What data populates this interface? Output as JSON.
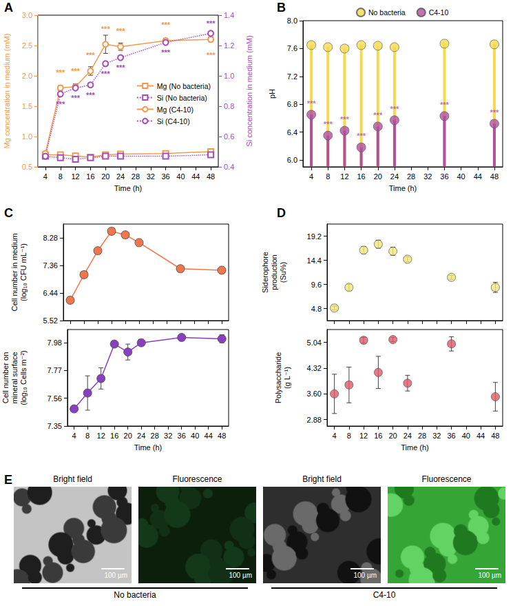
{
  "chart_data": [
    {
      "panel_label": "A",
      "type": "line",
      "x_label": "Time (h)",
      "y_label": "Mg concentration in medium (mM)",
      "y2_label": "Si concentration in medium (mM)",
      "x": [
        4,
        8,
        12,
        16,
        20,
        24,
        36,
        48
      ],
      "xlim": [
        2,
        50
      ],
      "xticks": [
        4,
        8,
        12,
        16,
        20,
        24,
        28,
        32,
        36,
        40,
        44,
        48
      ],
      "ylim": [
        0.5,
        3.0
      ],
      "yticks": [
        0.5,
        {
          "value": 1,
          "label": "1.0"
        },
        1.5,
        {
          "value": 2,
          "label": "2.0"
        },
        2.5,
        {
          "value": 3,
          "label": "3.0"
        }
      ],
      "y2lim": [
        0.4,
        1.4
      ],
      "y2ticks": [
        0.4,
        0.6,
        0.8,
        {
          "value": 1,
          "label": "1.0"
        },
        1.2,
        1.4
      ],
      "grid": false,
      "legend": "right",
      "series": [
        {
          "name": "Mg (No bacteria)",
          "color": "#f39a4b",
          "marker": "open square",
          "line_style": "solid",
          "values": [
            0.7,
            0.7,
            0.68,
            0.66,
            0.7,
            0.71,
            0.72,
            0.75
          ]
        },
        {
          "name": "Si (No bacteria)",
          "color": "#a64db8",
          "marker": "open square",
          "line_style": "dotted",
          "axis": "y2",
          "values": [
            0.47,
            0.46,
            0.45,
            0.46,
            0.47,
            0.47,
            0.47,
            0.48
          ]
        },
        {
          "name": "Mg (C4-10)",
          "color": "#f39a4b",
          "marker": "open circle",
          "line_style": "solid",
          "values": [
            0.72,
            1.8,
            1.82,
            2.08,
            2.52,
            2.48,
            2.58,
            2.6
          ],
          "errors": [
            0.02,
            0.04,
            0.05,
            0.07,
            0.15,
            0.06,
            0.04,
            0.04
          ],
          "significance": [
            null,
            "***",
            "***",
            "***",
            "***",
            "***",
            "***",
            "***"
          ]
        },
        {
          "name": "Si (C4-10)",
          "color": "#a64db8",
          "marker": "open circle",
          "line_style": "dotted",
          "axis": "y2",
          "values": [
            0.47,
            0.88,
            0.92,
            0.94,
            1.08,
            1.12,
            1.22,
            1.28
          ],
          "significance": [
            null,
            "***",
            "***",
            "***",
            "***",
            "***",
            "***",
            "***"
          ]
        }
      ]
    },
    {
      "panel_label": "B",
      "type": "lollipop",
      "x_label": "Time (h)",
      "y_label": "pH",
      "x": [
        4,
        8,
        12,
        16,
        20,
        24,
        36,
        48
      ],
      "xlim": [
        2,
        50
      ],
      "xticks": [
        4,
        8,
        12,
        16,
        20,
        24,
        28,
        32,
        36,
        40,
        44,
        48
      ],
      "ylim": [
        5.9,
        8.0
      ],
      "yticks": [
        {
          "value": 6,
          "label": "6.0"
        },
        6.4,
        6.8,
        7.2,
        7.6,
        {
          "value": 8,
          "label": "8.0"
        }
      ],
      "grid": false,
      "legend": "top",
      "series": [
        {
          "name": "No bacteria",
          "color": "#f5d94e",
          "values": [
            7.65,
            7.62,
            7.6,
            7.65,
            7.64,
            7.62,
            7.67,
            7.66
          ]
        },
        {
          "name": "C4-10",
          "color": "#b0509f",
          "values": [
            6.65,
            6.35,
            6.42,
            6.18,
            6.48,
            6.57,
            6.63,
            6.52
          ],
          "significance": [
            "***",
            "***",
            "***",
            "***",
            "***",
            "***",
            "***",
            "***"
          ]
        }
      ]
    },
    {
      "panel_label": "C",
      "type": "line",
      "y_label": "Cell number in medium (log₁₀ CFU mL⁻¹)",
      "x": [
        4,
        8,
        12,
        16,
        20,
        24,
        36,
        48
      ],
      "xlim": [
        2,
        50
      ],
      "xticks": [
        4,
        8,
        12,
        16,
        20,
        24,
        28,
        32,
        36,
        40,
        44,
        48
      ],
      "ylim": [
        5.52,
        8.74
      ],
      "yticks": [
        5.52,
        6.44,
        7.36,
        8.28
      ],
      "tick_labels": "y",
      "grid": false,
      "series": [
        {
          "color": "#f0764c",
          "marker": "circle",
          "line_style": "solid",
          "values": [
            6.2,
            7.05,
            7.85,
            8.5,
            8.38,
            8.12,
            7.25,
            7.2
          ],
          "errors": [
            0.08,
            0.07,
            0.04,
            0.05,
            0.06,
            0.07,
            0.08,
            0.06
          ]
        }
      ]
    },
    {
      "type": "line",
      "x_label": "Time (h)",
      "y_label": "Cell number on mineral surface (log₁₀ Cells m⁻²)",
      "x": [
        4,
        8,
        12,
        16,
        20,
        24,
        36,
        48
      ],
      "xlim": [
        2,
        50
      ],
      "xticks": [
        4,
        8,
        12,
        16,
        20,
        24,
        28,
        32,
        36,
        40,
        44,
        48
      ],
      "ylim": [
        7.35,
        8.08
      ],
      "yticks": [
        7.35,
        7.56,
        7.77,
        7.98
      ],
      "grid": false,
      "series": [
        {
          "color": "#8a3fc0",
          "marker": "circle",
          "line_style": "solid",
          "values": [
            7.48,
            7.6,
            7.71,
            7.97,
            7.91,
            7.98,
            8.02,
            8.01
          ],
          "errors": [
            0.01,
            0.13,
            0.08,
            0.01,
            0.06,
            0.02,
            0.02,
            0.03
          ]
        }
      ]
    },
    {
      "panel_label": "D",
      "type": "scatter",
      "y_label": "Siderophore production (Su%)",
      "x": [
        4,
        8,
        12,
        16,
        20,
        24,
        36,
        48
      ],
      "xlim": [
        2,
        50
      ],
      "xticks": [
        4,
        8,
        12,
        16,
        20,
        24,
        28,
        32,
        36,
        40,
        44,
        48
      ],
      "ylim": [
        2.4,
        21.6
      ],
      "yticks": [
        4.8,
        9.6,
        14.4,
        19.2
      ],
      "tick_labels": "y",
      "grid": false,
      "series": [
        {
          "color": "#f3e97a",
          "marker": "circle",
          "values": [
            4.9,
            9.0,
            16.4,
            17.6,
            16.2,
            14.6,
            11.0,
            9.0
          ],
          "errors": [
            0.4,
            0.6,
            0.7,
            0.8,
            0.8,
            0.5,
            0.4,
            1.0
          ]
        }
      ]
    },
    {
      "type": "scatter",
      "x_label": "Time (h)",
      "y_label": "Polysaccharide (g L⁻¹)",
      "x": [
        4,
        8,
        12,
        16,
        20,
        24,
        36,
        48
      ],
      "xlim": [
        2,
        50
      ],
      "xticks": [
        4,
        8,
        12,
        16,
        20,
        24,
        28,
        32,
        36,
        40,
        44,
        48
      ],
      "ylim": [
        2.7,
        5.4
      ],
      "yticks": [
        2.88,
        {
          "value": 3.6,
          "label": "3.60"
        },
        4.32,
        5.04
      ],
      "grid": false,
      "series": [
        {
          "color": "#e05a6a",
          "marker": "circle",
          "values": [
            3.6,
            3.85,
            5.1,
            4.2,
            5.12,
            3.9,
            5.0,
            3.52
          ],
          "errors": [
            0.55,
            0.5,
            0.08,
            0.45,
            0.06,
            0.22,
            0.2,
            0.4
          ]
        }
      ]
    }
  ],
  "panel_e": {
    "panel_label": "E",
    "images": [
      {
        "caption": "Bright field",
        "scale_bar": "100 µm"
      },
      {
        "caption": "Fluorescence",
        "scale_bar": "100 µm"
      },
      {
        "caption": "Bright field",
        "scale_bar": "100 µm"
      },
      {
        "caption": "Fluorescence",
        "scale_bar": "100 µm"
      }
    ],
    "groups": [
      {
        "label": "No bacteria",
        "images": 2
      },
      {
        "label": "C4-10",
        "images": 2
      }
    ]
  }
}
